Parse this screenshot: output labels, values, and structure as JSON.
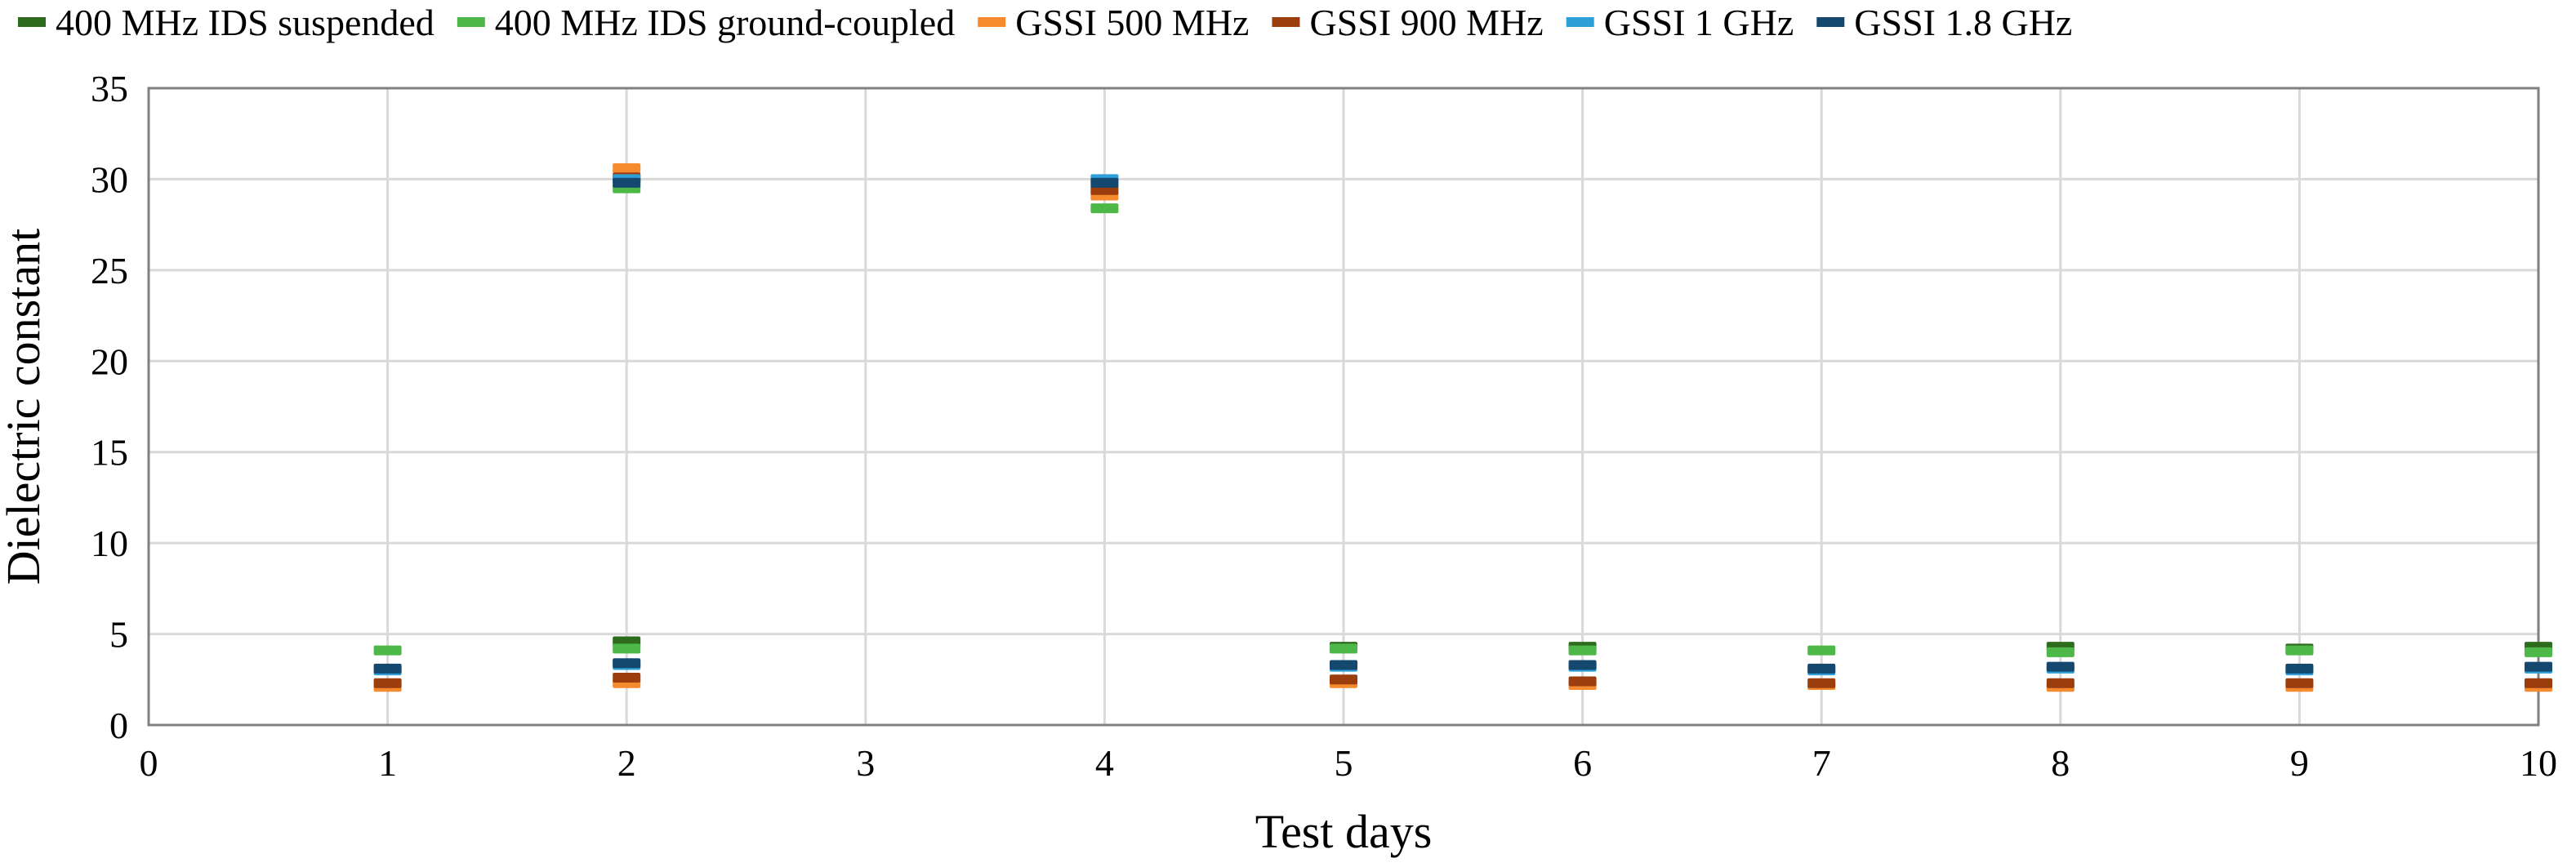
{
  "chart_data": {
    "type": "scatter",
    "title": "",
    "xlabel": "Test days",
    "ylabel": "Dielectric constant",
    "xlim": [
      0,
      10
    ],
    "ylim": [
      0,
      35
    ],
    "x_categories": [
      "0",
      "1",
      "2",
      "3",
      "4",
      "5",
      "6",
      "7",
      "8",
      "9",
      "10"
    ],
    "y_ticks": [
      0,
      5,
      10,
      15,
      20,
      25,
      30,
      35
    ],
    "grid": true,
    "legend_position": "top",
    "marker": "dash",
    "series": [
      {
        "name": "400 MHz IDS suspended",
        "color": "#2e6b1e",
        "points": [
          [
            2,
            4.6
          ],
          [
            2,
            30.0
          ],
          [
            5,
            4.3
          ],
          [
            6,
            4.3
          ],
          [
            8,
            4.3
          ],
          [
            9,
            4.2
          ],
          [
            10,
            4.3
          ]
        ]
      },
      {
        "name": "400 MHz IDS ground-coupled",
        "color": "#4db848",
        "points": [
          [
            1,
            4.1
          ],
          [
            2,
            4.2
          ],
          [
            2,
            29.5
          ],
          [
            4,
            28.4
          ],
          [
            5,
            4.2
          ],
          [
            6,
            4.1
          ],
          [
            7,
            4.1
          ],
          [
            8,
            4.0
          ],
          [
            9,
            4.1
          ],
          [
            10,
            4.0
          ]
        ]
      },
      {
        "name": "GSSI 500 MHz",
        "color": "#f58a2f",
        "points": [
          [
            1,
            2.1
          ],
          [
            2,
            2.3
          ],
          [
            2,
            30.6
          ],
          [
            4,
            29.1
          ],
          [
            5,
            2.3
          ],
          [
            6,
            2.2
          ],
          [
            7,
            2.2
          ],
          [
            8,
            2.1
          ],
          [
            9,
            2.1
          ],
          [
            10,
            2.1
          ]
        ]
      },
      {
        "name": "GSSI 900 MHz",
        "color": "#9c3d0e",
        "points": [
          [
            1,
            2.3
          ],
          [
            2,
            2.6
          ],
          [
            2,
            30.1
          ],
          [
            4,
            29.4
          ],
          [
            5,
            2.5
          ],
          [
            6,
            2.4
          ],
          [
            7,
            2.3
          ],
          [
            8,
            2.3
          ],
          [
            9,
            2.3
          ],
          [
            10,
            2.3
          ]
        ]
      },
      {
        "name": "GSSI 1 GHz",
        "color": "#2e9fd8",
        "points": [
          [
            1,
            3.0
          ],
          [
            2,
            3.3
          ],
          [
            2,
            30.0
          ],
          [
            4,
            30.0
          ],
          [
            5,
            3.2
          ],
          [
            6,
            3.2
          ],
          [
            7,
            3.0
          ],
          [
            8,
            3.1
          ],
          [
            9,
            3.0
          ],
          [
            10,
            3.1
          ]
        ]
      },
      {
        "name": "GSSI 1.8 GHz",
        "color": "#14486e",
        "points": [
          [
            1,
            3.1
          ],
          [
            2,
            3.4
          ],
          [
            2,
            29.8
          ],
          [
            4,
            29.8
          ],
          [
            5,
            3.3
          ],
          [
            6,
            3.3
          ],
          [
            7,
            3.1
          ],
          [
            8,
            3.2
          ],
          [
            9,
            3.1
          ],
          [
            10,
            3.2
          ]
        ]
      }
    ]
  }
}
